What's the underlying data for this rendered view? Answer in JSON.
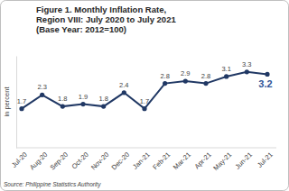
{
  "chart_data": {
    "type": "line",
    "title": [
      "Figure 1. Monthly Inflation Rate,",
      "Region VIII: July 2020 to July 2021"
    ],
    "subtitle": "(Base Year: 2012=100)",
    "y_label": "in percent",
    "source": "Source: Philippine Statistics Authority",
    "categories": [
      "Jul-20",
      "Aug-20",
      "Sep-20",
      "Oct-20",
      "Nov-20",
      "Dec-20",
      "Jan-21",
      "Feb-21",
      "Mar-21",
      "Apr-21",
      "May-21",
      "Jun-21",
      "Jul-21"
    ],
    "values": [
      1.7,
      2.3,
      1.8,
      1.9,
      1.8,
      2.4,
      1.7,
      2.8,
      2.9,
      2.8,
      3.1,
      3.3,
      3.2
    ],
    "color": "#203864",
    "marker": "circle",
    "ylim": [
      0,
      4
    ],
    "yticks": [],
    "tick_labels": "x",
    "data_labels": true,
    "grid": false
  }
}
